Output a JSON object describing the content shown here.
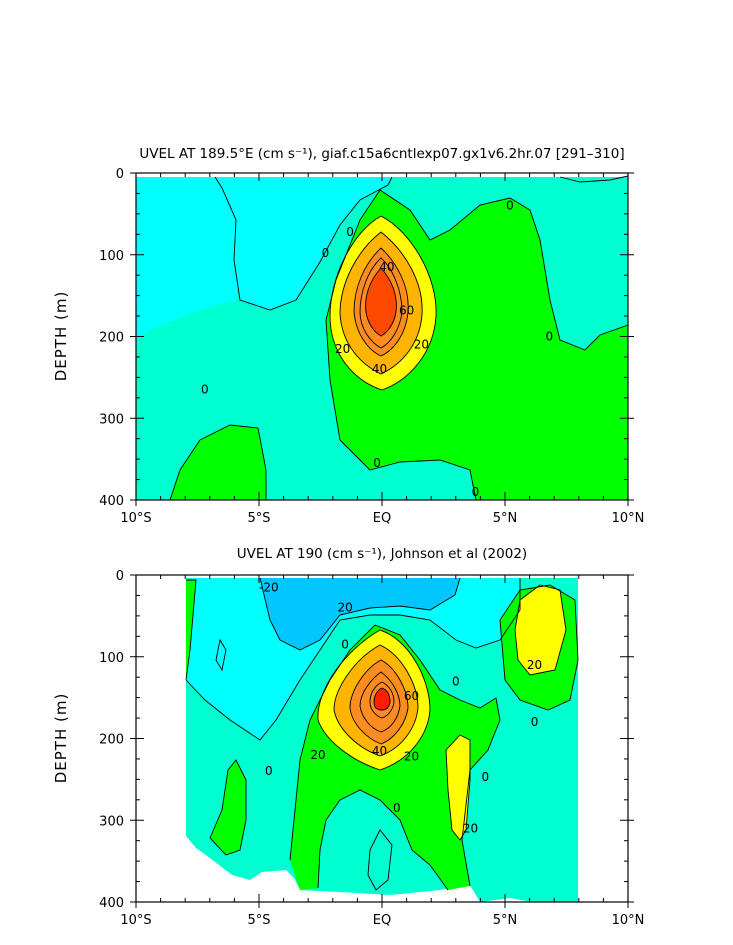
{
  "chart_data": [
    {
      "type": "contour",
      "title": "UVEL AT 189.5°E (cm s⁻¹), giaf.c15a6cntlexp07.gx1v6.2hr.07 [291–310]",
      "ylabel": "DEPTH (m)",
      "xlabel": "",
      "x_ticks": [
        "10°S",
        "5°S",
        "EQ",
        "5°N",
        "10°N"
      ],
      "y_ticks": [
        "0",
        "100",
        "200",
        "300",
        "400"
      ],
      "xlim": [
        -10,
        10
      ],
      "ylim": [
        0,
        400
      ],
      "y_inverted": true,
      "contour_interval": 10,
      "core": {
        "lat": 0,
        "depth": 150,
        "max_value": 70
      },
      "contour_labels": [
        {
          "text": "0",
          "lat": -7.2,
          "depth": 265
        },
        {
          "text": "0",
          "lat": -0.2,
          "depth": 355
        },
        {
          "text": "0",
          "lat": 3.8,
          "depth": 390
        },
        {
          "text": "0",
          "lat": 5.2,
          "depth": 40
        },
        {
          "text": "0",
          "lat": 6.8,
          "depth": 200
        },
        {
          "text": "0",
          "lat": -2.3,
          "depth": 98
        },
        {
          "text": "0",
          "lat": -1.3,
          "depth": 72
        },
        {
          "text": "20",
          "lat": 1.6,
          "depth": 210
        },
        {
          "text": "20",
          "lat": -1.6,
          "depth": 215
        },
        {
          "text": "40",
          "lat": 0.2,
          "depth": 115
        },
        {
          "text": "40",
          "lat": -0.1,
          "depth": 240
        },
        {
          "text": "60",
          "lat": 1.0,
          "depth": 168
        }
      ],
      "fill_levels": [
        {
          "range": "< 0",
          "color": "#00ffff"
        },
        {
          "range": "0 – 10",
          "color": "#00ffd0"
        },
        {
          "range": "10 – 20",
          "color": "#00ff00"
        },
        {
          "range": "20 – 30",
          "color": "#ffff00"
        },
        {
          "range": "30 – 40",
          "color": "#ffb400"
        },
        {
          "range": "40 – 70",
          "color": "#ff8c20"
        },
        {
          "range": "> 70",
          "color": "#ff4800"
        }
      ]
    },
    {
      "type": "contour",
      "title": "UVEL AT 190 (cm s⁻¹), Johnson et al (2002)",
      "ylabel": "DEPTH (m)",
      "xlabel": "",
      "x_ticks": [
        "10°S",
        "5°S",
        "EQ",
        "5°N",
        "10°N"
      ],
      "y_ticks": [
        "0",
        "100",
        "200",
        "300",
        "400"
      ],
      "xlim": [
        -10,
        10
      ],
      "ylim": [
        0,
        400
      ],
      "y_inverted": true,
      "data_lat_range": [
        -8,
        8
      ],
      "contour_interval": 10,
      "core": {
        "lat": 0,
        "depth": 150,
        "max_value": 80
      },
      "contour_labels": [
        {
          "text": "-20",
          "lat": -4.6,
          "depth": 15
        },
        {
          "text": "20",
          "lat": -1.5,
          "depth": 40
        },
        {
          "text": "0",
          "lat": -1.5,
          "depth": 85
        },
        {
          "text": "0",
          "lat": 3.0,
          "depth": 130
        },
        {
          "text": "60",
          "lat": 1.2,
          "depth": 148
        },
        {
          "text": "20",
          "lat": 6.2,
          "depth": 110
        },
        {
          "text": "0",
          "lat": 6.2,
          "depth": 180
        },
        {
          "text": "40",
          "lat": -0.1,
          "depth": 215
        },
        {
          "text": "20",
          "lat": -2.6,
          "depth": 220
        },
        {
          "text": "20",
          "lat": 1.2,
          "depth": 222
        },
        {
          "text": "0",
          "lat": -4.6,
          "depth": 240
        },
        {
          "text": "0",
          "lat": 4.2,
          "depth": 247
        },
        {
          "text": "0",
          "lat": 0.6,
          "depth": 285
        },
        {
          "text": "20",
          "lat": 3.6,
          "depth": 310
        }
      ],
      "fill_levels": [
        {
          "range": "< -20",
          "color": "#00c8ff"
        },
        {
          "range": "-20 – 0",
          "color": "#00ffff"
        },
        {
          "range": "0 – 10",
          "color": "#00ffd0"
        },
        {
          "range": "10 – 20",
          "color": "#00ff00"
        },
        {
          "range": "20 – 30",
          "color": "#ffff00"
        },
        {
          "range": "30 – 40",
          "color": "#ffb400"
        },
        {
          "range": "40 – 80",
          "color": "#ff8c20"
        },
        {
          "range": "> 80",
          "color": "#ff1e00"
        }
      ]
    }
  ],
  "colors": {
    "negative_strong": "#00c8ff",
    "negative": "#00ffff",
    "near_zero": "#00ffd0",
    "weak_positive": "#00ff00",
    "moderate": "#ffff00",
    "strong": "#ffb400",
    "very_strong": "#ff8c20",
    "core": "#ff4800",
    "core_obs": "#ff1e00"
  }
}
